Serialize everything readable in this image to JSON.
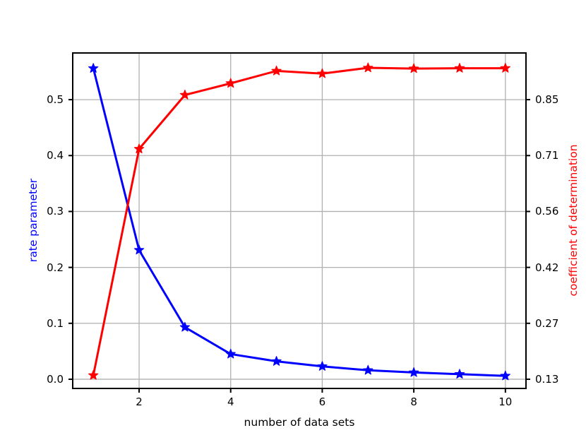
{
  "chart_data": {
    "type": "line",
    "title": "",
    "xlabel": "number of data sets",
    "x": [
      1,
      2,
      3,
      4,
      5,
      6,
      7,
      8,
      9,
      10
    ],
    "xlim": [
      0.55,
      10.45
    ],
    "grid": true,
    "grid_color": "#b0b0b0",
    "background_color": "#ffffff",
    "x_axis": {
      "tick_values": [
        2,
        4,
        6,
        8,
        10
      ],
      "tick_labels": [
        "2",
        "4",
        "6",
        "8",
        "10"
      ]
    },
    "left_axis": {
      "label": "rate parameter",
      "color": "#0000ff",
      "ylim": [
        -0.0165,
        0.5835
      ],
      "tick_values": [
        0.0,
        0.1,
        0.2,
        0.3,
        0.4,
        0.5
      ],
      "tick_labels": [
        "0.0",
        "0.1",
        "0.2",
        "0.3",
        "0.4",
        "0.5"
      ]
    },
    "right_axis": {
      "label": "coefficient of determination",
      "color": "#ff0000",
      "ylim": [
        0.1062,
        0.9702
      ],
      "tick_values": [
        0.13,
        0.274,
        0.418,
        0.562,
        0.706,
        0.85
      ],
      "tick_labels": [
        "0.13",
        "0.27",
        "0.42",
        "0.56",
        "0.71",
        "0.85"
      ]
    },
    "series": [
      {
        "name": "rate parameter",
        "axis": "left",
        "color": "#0000ff",
        "marker": "star",
        "line_width": 3,
        "values": [
          0.556,
          0.231,
          0.093,
          0.045,
          0.032,
          0.023,
          0.016,
          0.012,
          0.009,
          0.006
        ]
      },
      {
        "name": "coefficient of determination",
        "axis": "right",
        "color": "#ff0000",
        "marker": "star",
        "line_width": 3,
        "values": [
          0.14,
          0.723,
          0.862,
          0.892,
          0.924,
          0.917,
          0.932,
          0.93,
          0.931,
          0.931
        ]
      }
    ]
  }
}
